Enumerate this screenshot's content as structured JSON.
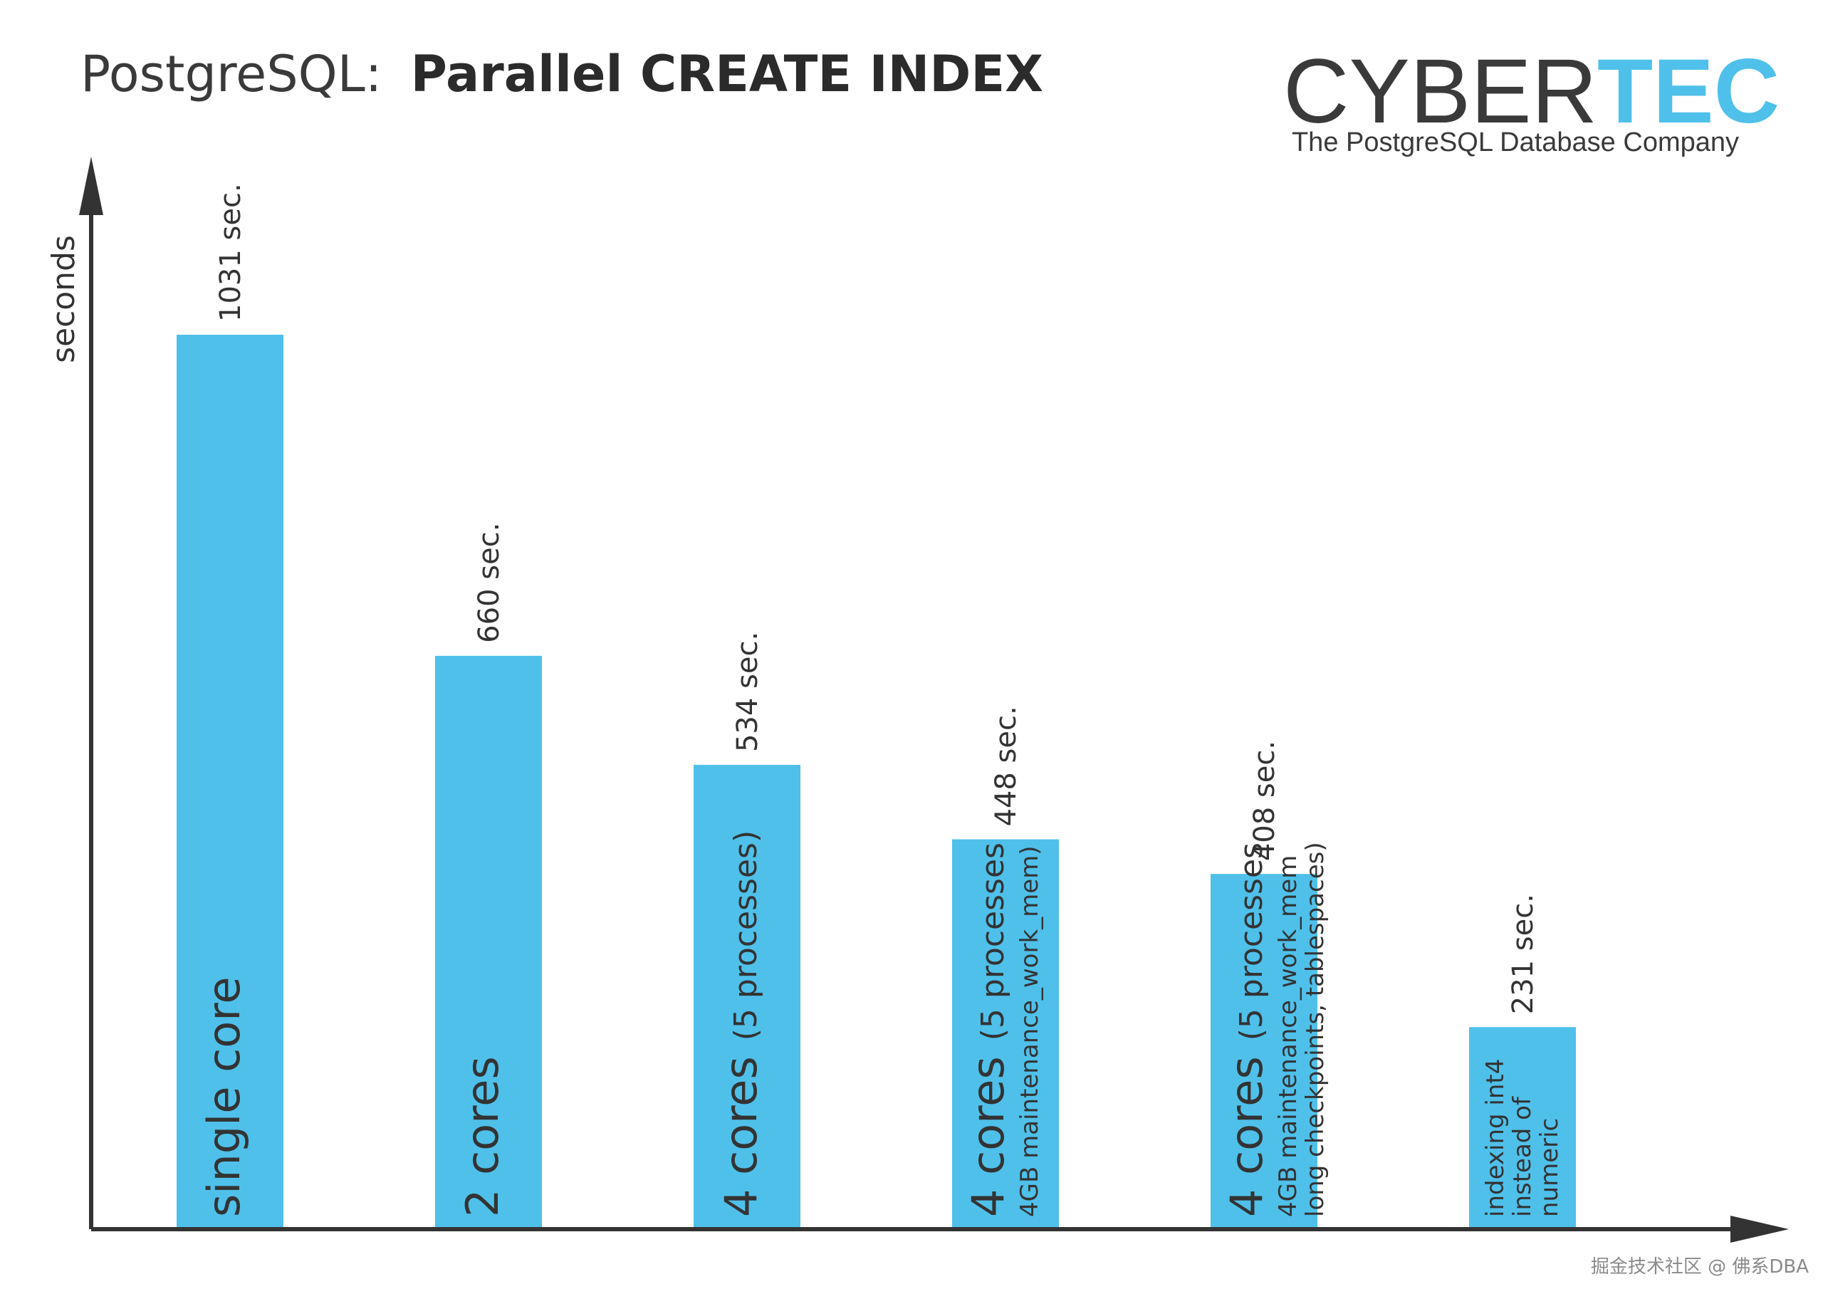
{
  "title": {
    "prefix": "PostgreSQL:",
    "main": "Parallel CREATE INDEX"
  },
  "logo": {
    "part1": "CYBER",
    "part2": "TEC",
    "tagline": "The PostgreSQL Database Company"
  },
  "watermark": "掘金技术社区 @ 佛系DBA",
  "colors": {
    "bar": "#4fc0ea",
    "axis": "#333333",
    "accent": "#4fc0ea",
    "text": "#333333"
  },
  "chart_data": {
    "type": "bar",
    "title": "PostgreSQL: Parallel CREATE INDEX",
    "ylabel": "seconds",
    "xlabel": "",
    "ylim": [
      0,
      1260
    ],
    "grid": false,
    "legend": "none",
    "categories": [
      "single core",
      "2 cores",
      "4 cores (5 processes)",
      "4 cores (5 processes 4GB maintenance_work_mem)",
      "4 cores (5 processes 4GB maintenance_work_mem long checkpoints, tablespaces)",
      "indexing int4 instead of numeric"
    ],
    "values": [
      1031,
      660,
      534,
      448,
      408,
      231
    ],
    "value_labels": [
      "1031 sec.",
      "660 sec.",
      "534 sec.",
      "448 sec.",
      "408 sec.",
      "231 sec."
    ],
    "bar_text": [
      {
        "lines": [
          {
            "main": "single core"
          }
        ]
      },
      {
        "lines": [
          {
            "main": "2 cores"
          }
        ]
      },
      {
        "lines": [
          {
            "main": "4 cores",
            "sub": "(5 processes)"
          }
        ]
      },
      {
        "lines": [
          {
            "main": "4 cores",
            "sub": "(5 processes"
          },
          {
            "small": "4GB maintenance_work_mem)"
          }
        ]
      },
      {
        "lines": [
          {
            "main": "4 cores",
            "sub": "(5 processes"
          },
          {
            "small": "4GB maintenance_work_mem"
          },
          {
            "small": "long checkpoints, tablespaces)"
          }
        ]
      },
      {
        "lines": [
          {
            "small": "indexing int4"
          },
          {
            "small": "instead of"
          },
          {
            "small": "numeric"
          }
        ]
      }
    ]
  }
}
